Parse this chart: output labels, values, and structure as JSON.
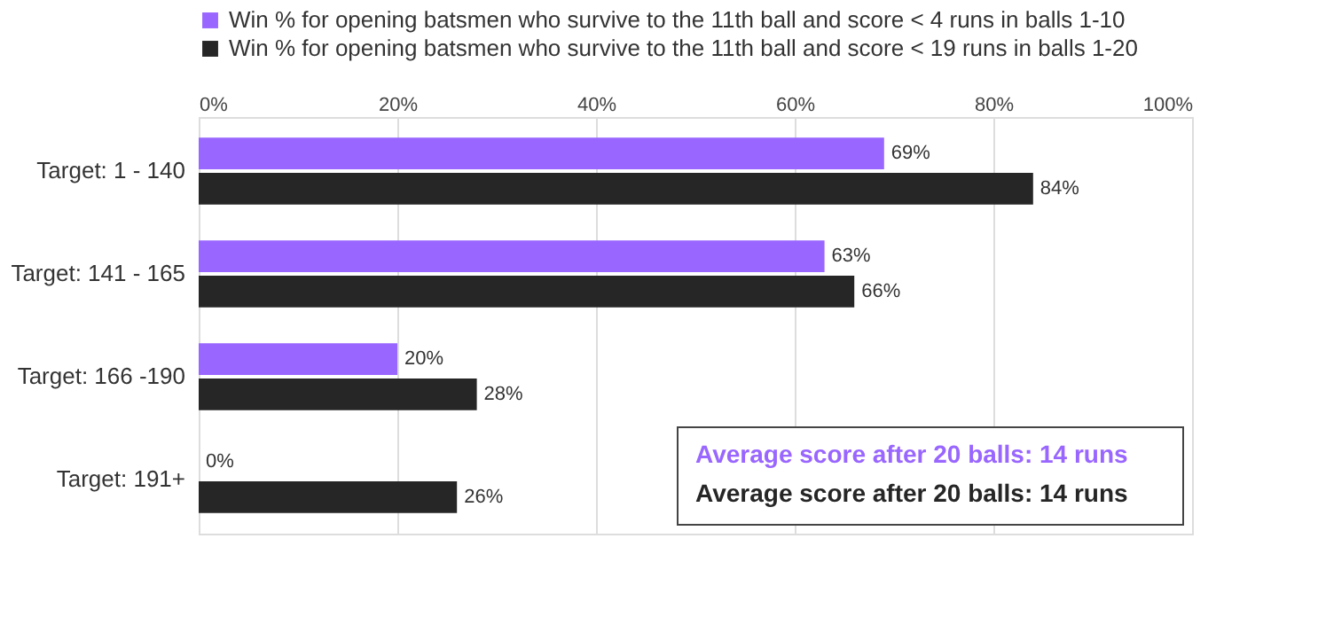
{
  "chart_data": {
    "type": "bar",
    "orientation": "horizontal",
    "categories": [
      "Target: 1 - 140",
      "Target: 141 - 165",
      "Target: 166 -190",
      "Target: 191+"
    ],
    "series": [
      {
        "name": "Win % for opening batsmen who survive to the 11th ball and score < 4 runs in balls 1-10",
        "color": "#9966ff",
        "values": [
          69,
          63,
          20,
          0
        ],
        "value_labels": [
          "69%",
          "63%",
          "20%",
          "0%"
        ]
      },
      {
        "name": "Win % for opening batsmen who survive to the 11th ball and score < 19 runs in balls 1-20",
        "color": "#262626",
        "values": [
          84,
          66,
          28,
          26
        ],
        "value_labels": [
          "84%",
          "66%",
          "28%",
          "26%"
        ]
      }
    ],
    "xlim": [
      0,
      100
    ],
    "xticks": [
      {
        "value": 0,
        "label": "0%"
      },
      {
        "value": 20,
        "label": "20%"
      },
      {
        "value": 40,
        "label": "40%"
      },
      {
        "value": 60,
        "label": "60%"
      },
      {
        "value": 80,
        "label": "80%"
      },
      {
        "value": 100,
        "label": "100%"
      }
    ],
    "annotations": [
      "Average score after 20 balls: 14 runs",
      "Average score after 20 balls: 14 runs"
    ],
    "grid": "x",
    "legend": "top left"
  }
}
